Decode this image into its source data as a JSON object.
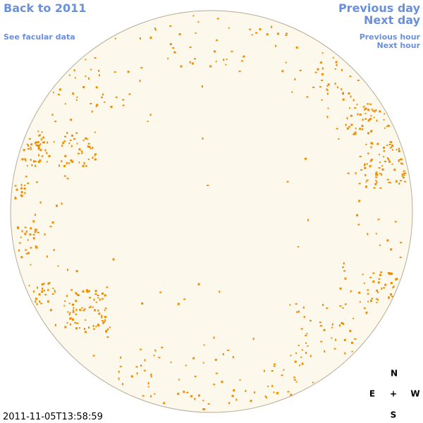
{
  "links": {
    "back": "Back to 2011",
    "facular": "See facular data",
    "previous_day": "Previous day",
    "next_day": "Next day",
    "previous_hour": "Previous hour",
    "next_hour": "Next hour"
  },
  "timestamp": "2011-11-05T13:58:59",
  "compass": {
    "north": "N",
    "east": "E",
    "center": "+",
    "west": "W",
    "south": "S"
  }
}
